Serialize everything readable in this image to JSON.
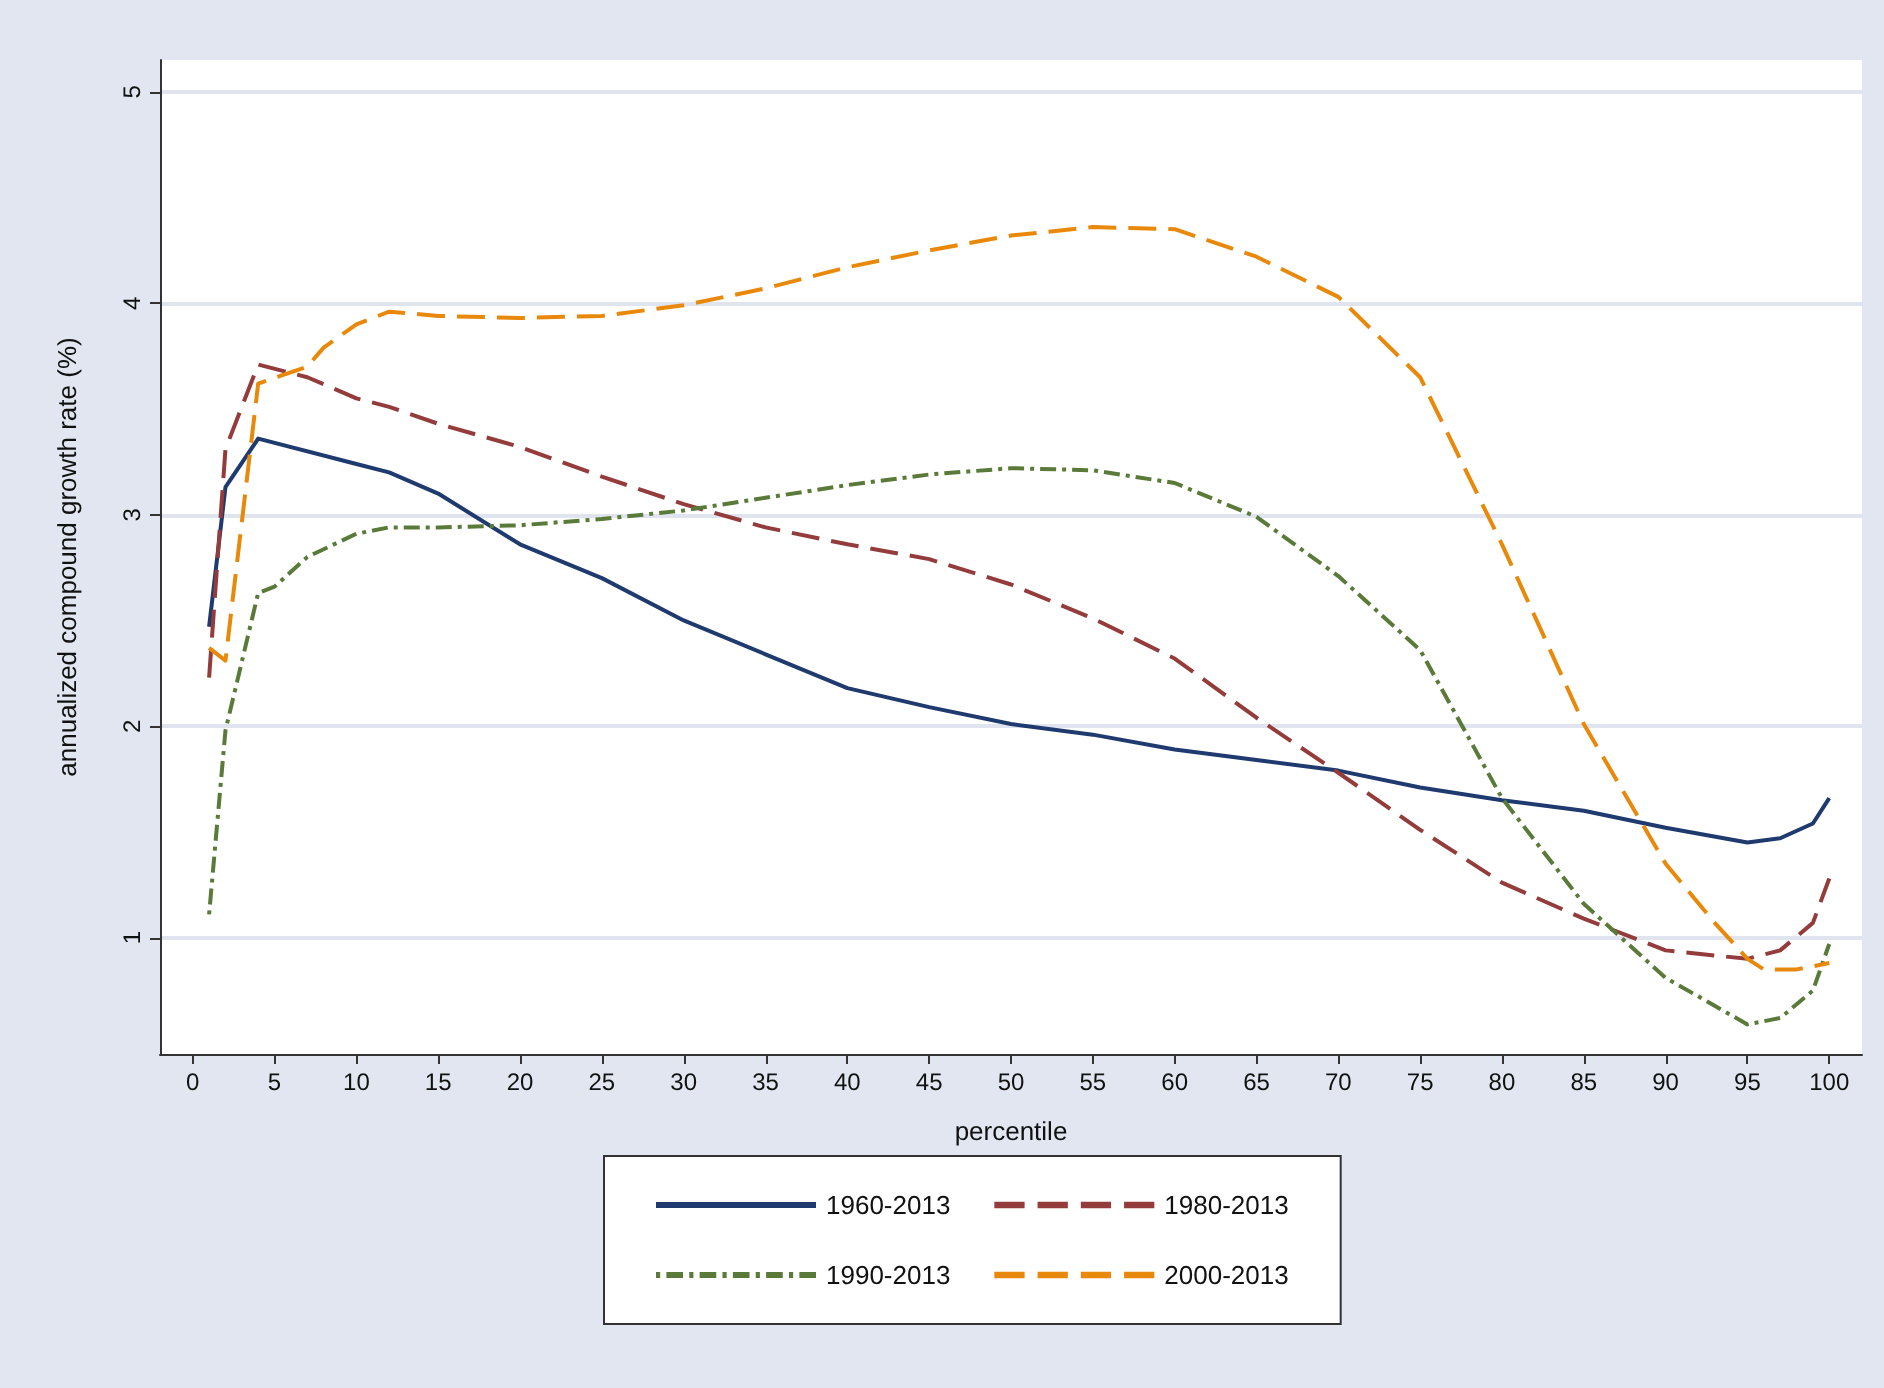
{
  "chart_data": {
    "type": "line",
    "xlabel": "percentile",
    "ylabel": "annualized compound growth rate (%)",
    "xlim": [
      -2,
      102
    ],
    "xticks": [
      0,
      5,
      10,
      15,
      20,
      25,
      30,
      35,
      40,
      45,
      50,
      55,
      60,
      65,
      70,
      75,
      80,
      85,
      90,
      95,
      100
    ],
    "ylim": [
      0.45,
      5.15
    ],
    "yticks": [
      1,
      2,
      3,
      4,
      5
    ],
    "grid": "y",
    "legend": "bottom",
    "marker": "none",
    "series": [
      {
        "name": "1960-2013",
        "color": "#1f3a6e",
        "line_style": "solid",
        "x": [
          1,
          2,
          4,
          10,
          12,
          15,
          20,
          25,
          30,
          35,
          40,
          45,
          50,
          55,
          60,
          65,
          70,
          75,
          80,
          85,
          90,
          95,
          97,
          99,
          100
        ],
        "values": [
          2.47,
          3.13,
          3.36,
          3.24,
          3.2,
          3.1,
          2.86,
          2.7,
          2.5,
          2.34,
          2.18,
          2.09,
          2.01,
          1.96,
          1.89,
          1.84,
          1.79,
          1.71,
          1.65,
          1.6,
          1.52,
          1.45,
          1.47,
          1.54,
          1.66
        ]
      },
      {
        "name": "1980-2013",
        "color": "#943c3c",
        "line_style": "dashed",
        "x": [
          1,
          2,
          4,
          7,
          10,
          12,
          15,
          20,
          25,
          30,
          35,
          40,
          45,
          50,
          55,
          60,
          65,
          70,
          75,
          80,
          85,
          90,
          95,
          97,
          99,
          100
        ],
        "values": [
          2.23,
          3.31,
          3.71,
          3.65,
          3.55,
          3.51,
          3.43,
          3.32,
          3.18,
          3.05,
          2.94,
          2.86,
          2.79,
          2.67,
          2.51,
          2.32,
          2.04,
          1.78,
          1.51,
          1.26,
          1.09,
          0.94,
          0.9,
          0.94,
          1.07,
          1.28
        ]
      },
      {
        "name": "1990-2013",
        "color": "#5a7a3a",
        "line_style": "dotted",
        "x": [
          1,
          2,
          4,
          5,
          7,
          10,
          12,
          15,
          20,
          25,
          30,
          35,
          40,
          45,
          50,
          55,
          60,
          65,
          70,
          75,
          80,
          85,
          90,
          95,
          97,
          99,
          100
        ],
        "values": [
          1.11,
          1.98,
          2.63,
          2.66,
          2.8,
          2.91,
          2.94,
          2.94,
          2.95,
          2.98,
          3.02,
          3.08,
          3.14,
          3.19,
          3.22,
          3.21,
          3.15,
          2.99,
          2.71,
          2.36,
          1.66,
          1.16,
          0.81,
          0.59,
          0.62,
          0.75,
          0.97
        ]
      },
      {
        "name": "2000-2013",
        "color": "#e8890c",
        "line_style": "dashed",
        "x": [
          1,
          2,
          4,
          7,
          8,
          10,
          12,
          15,
          20,
          25,
          30,
          35,
          40,
          45,
          50,
          55,
          60,
          65,
          70,
          75,
          80,
          85,
          90,
          93,
          95,
          96,
          98,
          100
        ],
        "values": [
          2.37,
          2.31,
          3.62,
          3.7,
          3.79,
          3.9,
          3.96,
          3.94,
          3.93,
          3.94,
          3.99,
          4.07,
          4.17,
          4.25,
          4.32,
          4.36,
          4.35,
          4.22,
          4.03,
          3.65,
          2.86,
          2.01,
          1.35,
          1.07,
          0.9,
          0.85,
          0.85,
          0.88
        ]
      }
    ]
  }
}
